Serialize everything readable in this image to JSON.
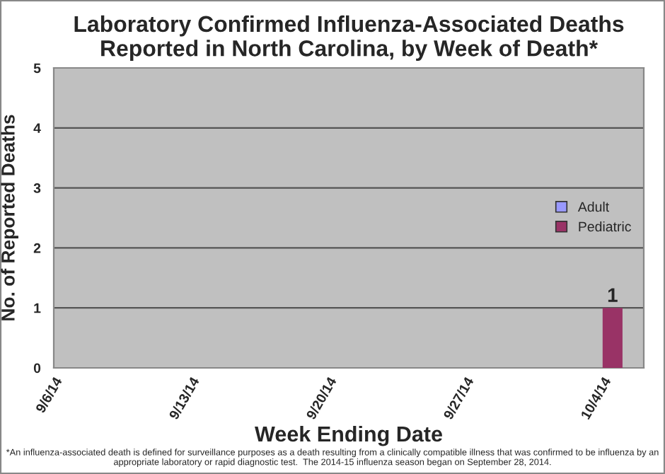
{
  "chart_data": {
    "type": "bar",
    "title": "Laboratory Confirmed Influenza-Associated Deaths\nReported in North Carolina, by Week of Death*",
    "xlabel": "Week Ending Date",
    "ylabel": "No. of Reported Deaths",
    "categories": [
      "9/6/14",
      "9/13/14",
      "9/20/14",
      "9/27/14",
      "10/4/14"
    ],
    "series": [
      {
        "name": "Adult",
        "color": "#9999ff",
        "values": [
          0,
          0,
          0,
          0,
          0
        ]
      },
      {
        "name": "Pediatric",
        "color": "#993366",
        "values": [
          0,
          0,
          0,
          0,
          1
        ],
        "value_labels": [
          null,
          null,
          null,
          null,
          "1"
        ]
      }
    ],
    "ylim": [
      0,
      5
    ],
    "yticks": [
      0,
      1,
      2,
      3,
      4,
      5
    ],
    "grid": "y",
    "legend": "right",
    "annotations": [
      "*An influenza-associated death is defined for surveillance purposes as a death resulting from a clinically compatible illness that was confirmed to be influenza by an appropriate laboratory or rapid diagnostic test.  The 2014-15 influenza season began on September 28, 2014."
    ]
  }
}
